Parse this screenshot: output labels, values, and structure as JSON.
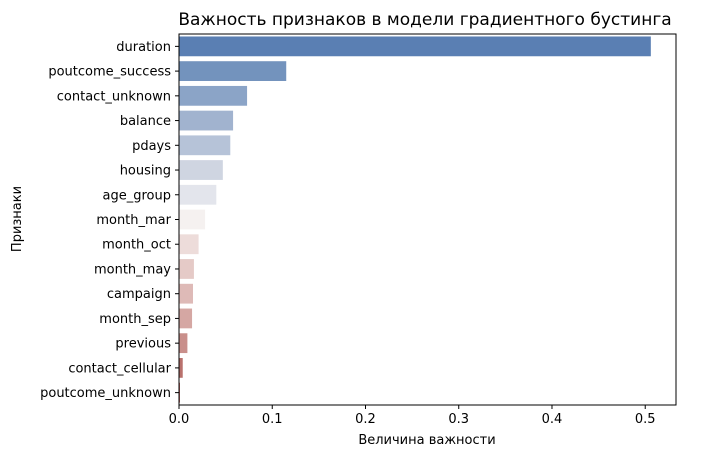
{
  "chart_data": {
    "type": "bar",
    "orientation": "horizontal",
    "title": "Важность признаков в модели градиентного бустинга",
    "xlabel": "Величина важности",
    "ylabel": "Признаки",
    "xlim": [
      0,
      0.533
    ],
    "x_ticks": [
      "0.0",
      "0.1",
      "0.2",
      "0.3",
      "0.4",
      "0.5"
    ],
    "grid": false,
    "categories": [
      "duration",
      "poutcome_success",
      "contact_unknown",
      "balance",
      "pdays",
      "housing",
      "age_group",
      "month_mar",
      "month_oct",
      "month_may",
      "campaign",
      "month_sep",
      "previous",
      "contact_cellular",
      "poutcome_unknown"
    ],
    "values": [
      0.506,
      0.115,
      0.073,
      0.058,
      0.055,
      0.047,
      0.04,
      0.028,
      0.021,
      0.016,
      0.015,
      0.014,
      0.009,
      0.004,
      0.001
    ],
    "colors": [
      "#5a7fb3",
      "#7393bd",
      "#8ba4c7",
      "#a1b3cf",
      "#b6c3d8",
      "#cfd5e1",
      "#e3e5ec",
      "#f5f1f0",
      "#eddcda",
      "#e5cac7",
      "#debab7",
      "#d5a7a3",
      "#c98f8b",
      "#b9716d",
      "#a94f4b"
    ]
  }
}
